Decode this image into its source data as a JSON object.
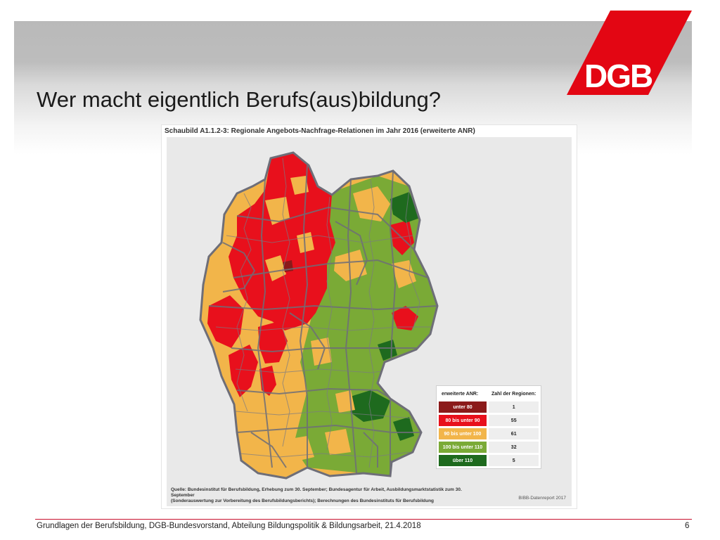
{
  "slide": {
    "title": "Wer macht eigentlich Berufs(aus)bildung?",
    "logo_text": "DGB",
    "footer": "Grundlagen der Berufsbildung, DGB-Bundesvorstand, Abteilung Bildungspolitik & Bildungsarbeit, 21.4.2018",
    "page_number": "6"
  },
  "figure": {
    "caption": "Schaubild A1.1.2-3: Regionale Angebots-Nachfrage-Relationen im Jahr 2016 (erweiterte ANR)",
    "legend": {
      "header_category": "erweiterte ANR:",
      "header_count": "Zahl der Regionen:",
      "items": [
        {
          "label": "unter 80",
          "count": "1",
          "color": "#8b1a1a"
        },
        {
          "label": "80 bis unter 90",
          "count": "55",
          "color": "#e8101c"
        },
        {
          "label": "90 bis unter 100",
          "count": "61",
          "color": "#f2b54a"
        },
        {
          "label": "100 bis unter 110",
          "count": "32",
          "color": "#7aaa36"
        },
        {
          "label": "über 110",
          "count": "5",
          "color": "#1e6a1e"
        }
      ]
    },
    "source_line1": "Quelle: Bundesinstitut für Berufsbildung, Erhebung zum 30. September; Bundesagentur für Arbeit, Ausbildungsmarktstatistik zum 30. September",
    "source_line2": "(Sonderauswertung zur Vorbereitung des Berufsbildungsberichts); Berechnungen des Bundesinstituts für Berufsbildung",
    "copyright": "BIBB-Datenreport 2017"
  }
}
